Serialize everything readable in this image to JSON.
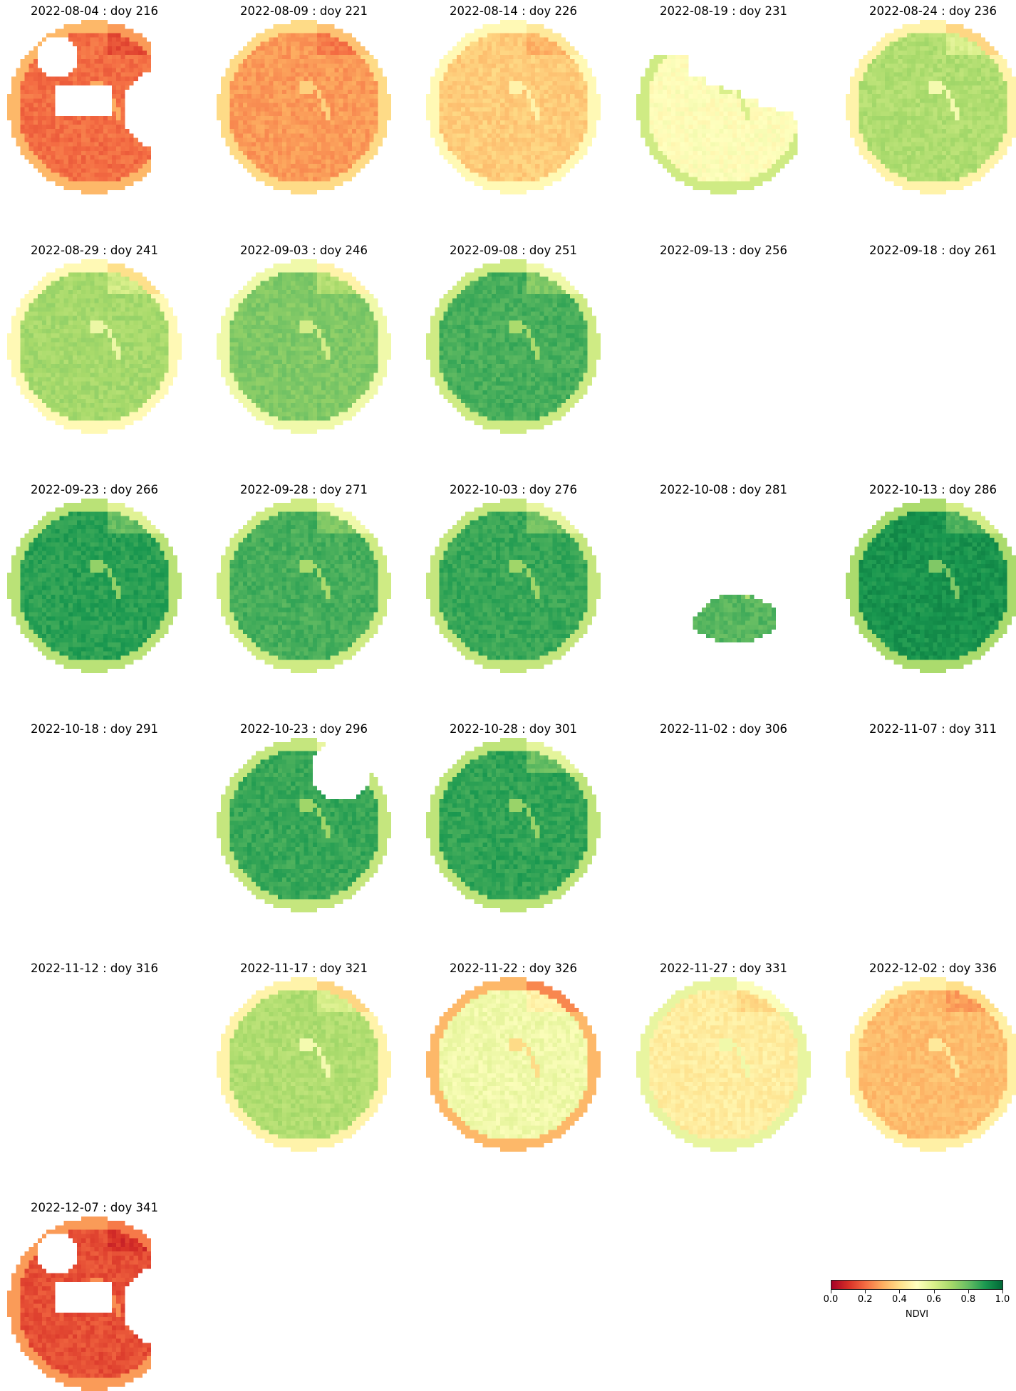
{
  "chart_data": {
    "type": "heatmap",
    "colormap": "RdYlGn",
    "vmin": 0.0,
    "vmax": 1.0,
    "colorbar": {
      "label": "NDVI",
      "ticks": [
        "0.0",
        "0.2",
        "0.4",
        "0.6",
        "0.8",
        "1.0"
      ]
    },
    "panels": [
      {
        "date": "2022-08-04",
        "doy": 216,
        "title": "2022-08-04 : doy 216",
        "mean_ndvi": 0.2,
        "coverage": "partial",
        "mask": "holes_left_right"
      },
      {
        "date": "2022-08-09",
        "doy": 221,
        "title": "2022-08-09 : doy 221",
        "mean_ndvi": 0.27,
        "coverage": "full"
      },
      {
        "date": "2022-08-14",
        "doy": 226,
        "title": "2022-08-14 : doy 226",
        "mean_ndvi": 0.36,
        "coverage": "full"
      },
      {
        "date": "2022-08-19",
        "doy": 231,
        "title": "2022-08-19 : doy 231",
        "mean_ndvi": 0.5,
        "coverage": "partial",
        "mask": "lower_left_staircase"
      },
      {
        "date": "2022-08-24",
        "doy": 236,
        "title": "2022-08-24 : doy 236",
        "mean_ndvi": 0.68,
        "coverage": "full"
      },
      {
        "date": "2022-08-29",
        "doy": 241,
        "title": "2022-08-29 : doy 241",
        "mean_ndvi": 0.7,
        "coverage": "full"
      },
      {
        "date": "2022-09-03",
        "doy": 246,
        "title": "2022-09-03 : doy 246",
        "mean_ndvi": 0.76,
        "coverage": "full"
      },
      {
        "date": "2022-09-08",
        "doy": 251,
        "title": "2022-09-08 : doy 251",
        "mean_ndvi": 0.84,
        "coverage": "full"
      },
      {
        "date": "2022-09-13",
        "doy": 256,
        "title": "2022-09-13 : doy 256",
        "coverage": "none"
      },
      {
        "date": "2022-09-18",
        "doy": 261,
        "title": "2022-09-18 : doy 261",
        "coverage": "none"
      },
      {
        "date": "2022-09-23",
        "doy": 266,
        "title": "2022-09-23 : doy 266",
        "mean_ndvi": 0.88,
        "coverage": "full"
      },
      {
        "date": "2022-09-28",
        "doy": 271,
        "title": "2022-09-28 : doy 271",
        "mean_ndvi": 0.84,
        "coverage": "full"
      },
      {
        "date": "2022-10-03",
        "doy": 276,
        "title": "2022-10-03 : doy 276",
        "mean_ndvi": 0.86,
        "coverage": "full"
      },
      {
        "date": "2022-10-08",
        "doy": 281,
        "title": "2022-10-08 : doy 281",
        "mean_ndvi": 0.82,
        "coverage": "partial",
        "mask": "small_patch_lower"
      },
      {
        "date": "2022-10-13",
        "doy": 286,
        "title": "2022-10-13 : doy 286",
        "mean_ndvi": 0.91,
        "coverage": "full"
      },
      {
        "date": "2022-10-18",
        "doy": 291,
        "title": "2022-10-18 : doy 291",
        "coverage": "none"
      },
      {
        "date": "2022-10-23",
        "doy": 296,
        "title": "2022-10-23 : doy 296",
        "mean_ndvi": 0.86,
        "coverage": "partial",
        "mask": "notch_top_right"
      },
      {
        "date": "2022-10-28",
        "doy": 301,
        "title": "2022-10-28 : doy 301",
        "mean_ndvi": 0.87,
        "coverage": "full"
      },
      {
        "date": "2022-11-02",
        "doy": 306,
        "title": "2022-11-02 : doy 306",
        "coverage": "none"
      },
      {
        "date": "2022-11-07",
        "doy": 311,
        "title": "2022-11-07 : doy 311",
        "coverage": "none"
      },
      {
        "date": "2022-11-12",
        "doy": 316,
        "title": "2022-11-12 : doy 316",
        "coverage": "none"
      },
      {
        "date": "2022-11-17",
        "doy": 321,
        "title": "2022-11-17 : doy 321",
        "mean_ndvi": 0.68,
        "coverage": "full"
      },
      {
        "date": "2022-11-22",
        "doy": 326,
        "title": "2022-11-22 : doy 326",
        "mean_ndvi": 0.54,
        "coverage": "full"
      },
      {
        "date": "2022-11-27",
        "doy": 331,
        "title": "2022-11-27 : doy 331",
        "mean_ndvi": 0.44,
        "coverage": "full"
      },
      {
        "date": "2022-12-02",
        "doy": 336,
        "title": "2022-12-02 : doy 336",
        "mean_ndvi": 0.33,
        "coverage": "full"
      },
      {
        "date": "2022-12-07",
        "doy": 341,
        "title": "2022-12-07 : doy 341",
        "mean_ndvi": 0.15,
        "coverage": "partial",
        "mask": "holes_left_right"
      }
    ]
  }
}
